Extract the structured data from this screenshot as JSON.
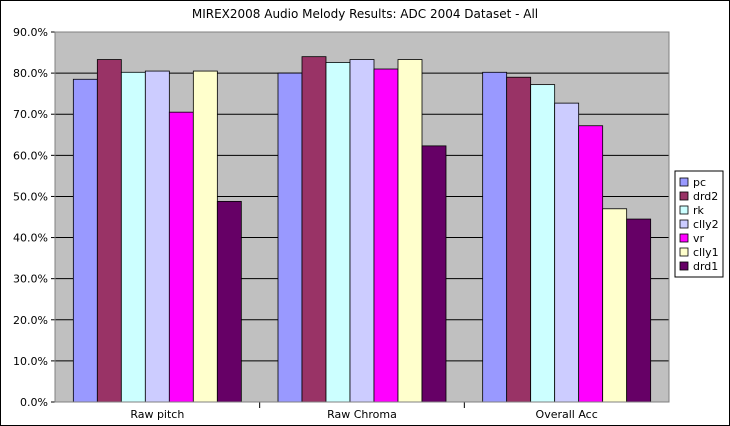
{
  "chart_data": {
    "type": "bar",
    "title": "MIREX2008 Audio Melody Results: ADC 2004 Dataset - All",
    "categories": [
      "Raw pitch",
      "Raw Chroma",
      "Overall Acc"
    ],
    "ylim": [
      0,
      90
    ],
    "yticks": [
      "0.0%",
      "10.0%",
      "20.0%",
      "30.0%",
      "40.0%",
      "50.0%",
      "60.0%",
      "70.0%",
      "80.0%",
      "90.0%"
    ],
    "grid": true,
    "legend_position": "right",
    "plot_background": "#c0c0c0",
    "series": [
      {
        "name": "pc",
        "color": "#9999ff",
        "values": [
          78.5,
          80.0,
          80.2
        ]
      },
      {
        "name": "drd2",
        "color": "#993366",
        "values": [
          83.3,
          84.0,
          79.0
        ]
      },
      {
        "name": "rk",
        "color": "#ccffff",
        "values": [
          80.2,
          82.6,
          77.2
        ]
      },
      {
        "name": "clly2",
        "color": "#ccccff",
        "values": [
          80.5,
          83.3,
          72.7
        ]
      },
      {
        "name": "vr",
        "color": "#ff00ff",
        "values": [
          70.5,
          81.0,
          67.2
        ]
      },
      {
        "name": "clly1",
        "color": "#ffffcc",
        "values": [
          80.5,
          83.3,
          47.0
        ]
      },
      {
        "name": "drd1",
        "color": "#660066",
        "values": [
          48.8,
          62.3,
          44.5
        ]
      }
    ]
  }
}
